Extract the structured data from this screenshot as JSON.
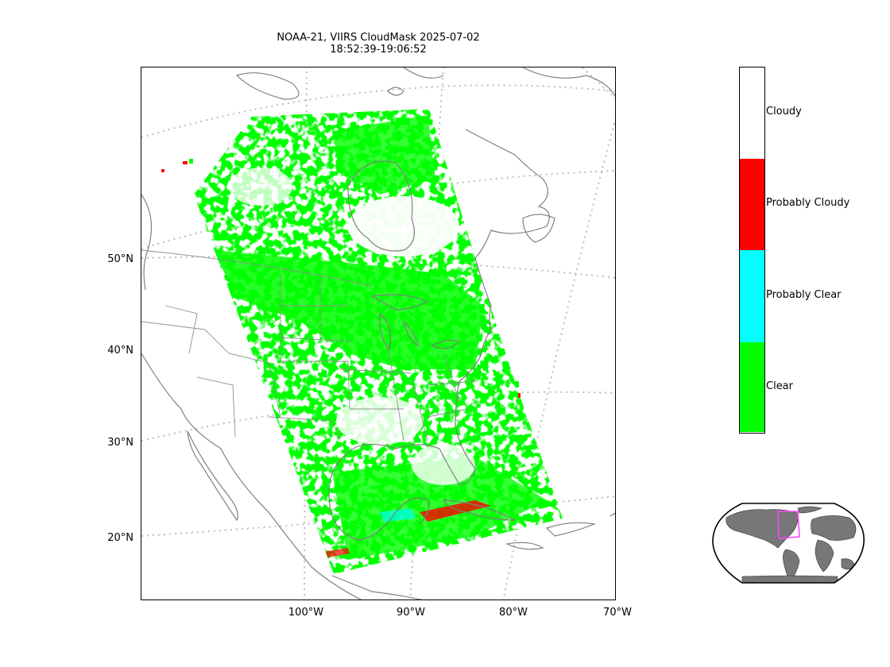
{
  "title": {
    "line1": "NOAA-21, VIIRS CloudMask 2025-07-02",
    "line2": "18:52:39-19:06:52"
  },
  "axes": {
    "lat_labels": [
      "50°N",
      "40°N",
      "30°N",
      "20°N"
    ],
    "lon_labels": [
      "100°W",
      "90°W",
      "80°W",
      "70°W"
    ]
  },
  "colorbar": {
    "categories": [
      {
        "label": "Cloudy",
        "color": "#ffffff"
      },
      {
        "label": "Probably Cloudy",
        "color": "#ff0000"
      },
      {
        "label": "Probably Clear",
        "color": "#00ffff"
      },
      {
        "label": "Clear",
        "color": "#00ff00"
      }
    ]
  },
  "colors": {
    "coastline": "#808080",
    "graticule": "#bdbdbd",
    "swath_highlight": "#ff44ff",
    "land_inset": "#7a7a7a"
  }
}
